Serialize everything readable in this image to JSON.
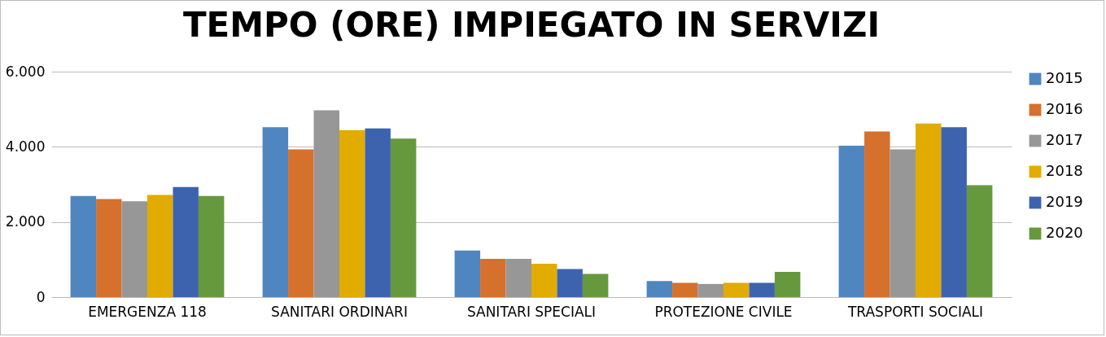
{
  "chart_data": {
    "type": "bar",
    "title": "TEMPO (ORE) IMPIEGATO IN SERVIZI",
    "categories": [
      "EMERGENZA 118",
      "SANITARI ORDINARI",
      "SANITARI SPECIALI",
      "PROTEZIONE CIVILE",
      "TRASPORTI SOCIALI"
    ],
    "series": [
      {
        "name": "2015",
        "color": "#4f86c0",
        "values": [
          2690,
          4520,
          1240,
          430,
          4030
        ]
      },
      {
        "name": "2016",
        "color": "#d5702d",
        "values": [
          2610,
          3930,
          1020,
          380,
          4410
        ]
      },
      {
        "name": "2017",
        "color": "#979797",
        "values": [
          2550,
          4970,
          1020,
          350,
          3930
        ]
      },
      {
        "name": "2018",
        "color": "#e2ab00",
        "values": [
          2720,
          4440,
          890,
          380,
          4620
        ]
      },
      {
        "name": "2019",
        "color": "#3d63ae",
        "values": [
          2930,
          4490,
          750,
          380,
          4520
        ]
      },
      {
        "name": "2020",
        "color": "#66993d",
        "values": [
          2690,
          4220,
          620,
          670,
          2980
        ]
      }
    ],
    "ylim": [
      0,
      6000
    ],
    "yticks": [
      0,
      {
        "value": 2000,
        "label": "2.000"
      },
      {
        "value": 4000,
        "label": "4.000"
      },
      {
        "value": 6000,
        "label": "6.000"
      }
    ],
    "grid": "y",
    "legend": "right"
  }
}
